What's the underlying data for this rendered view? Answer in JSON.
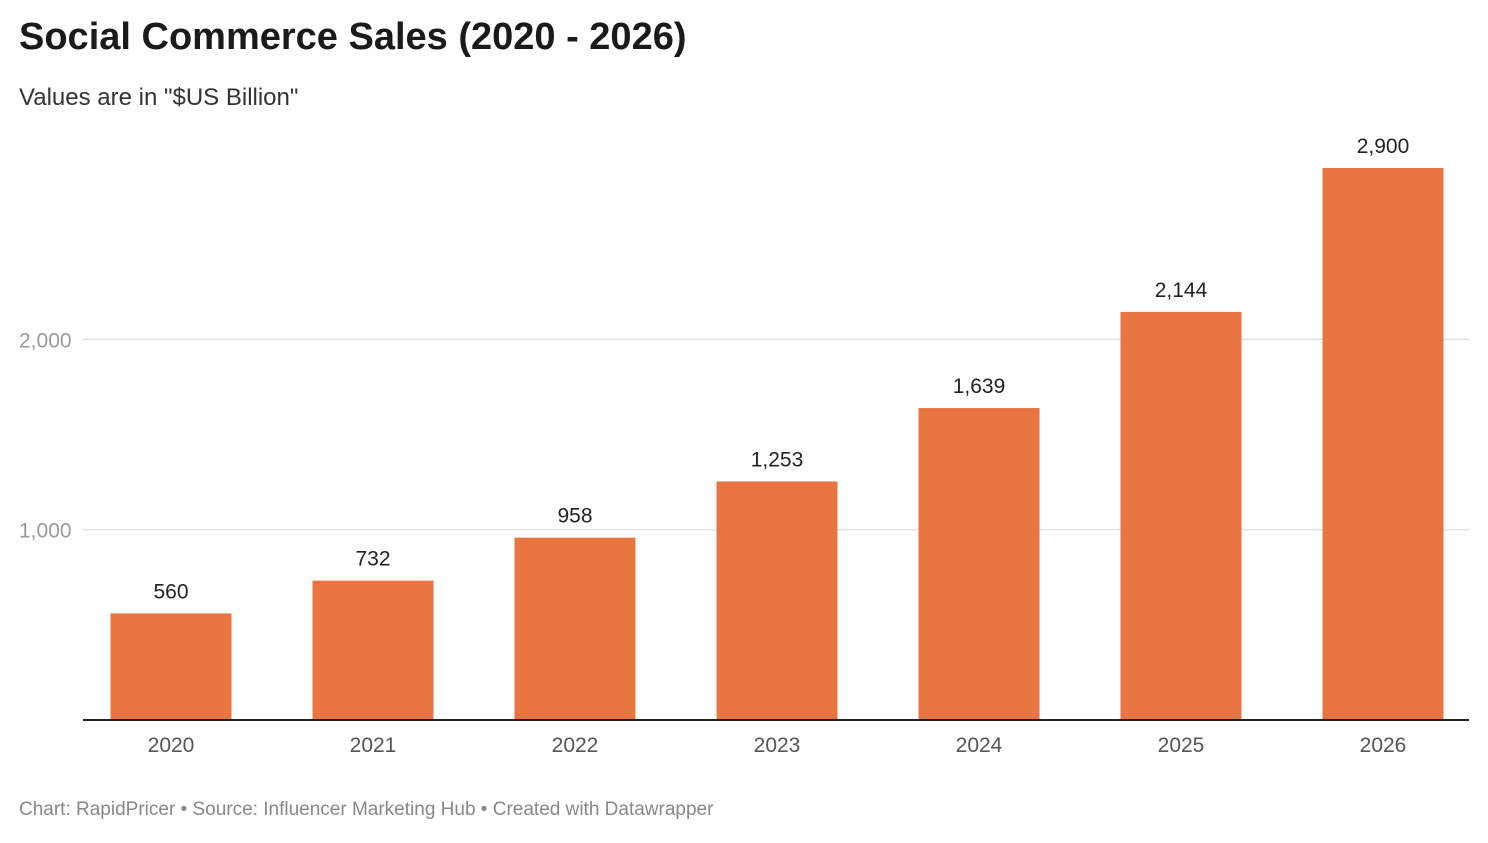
{
  "title": "Social Commerce Sales (2020 - 2026)",
  "subtitle": "Values are in \"$US Billion\"",
  "footer": "Chart: RapidPricer • Source: Influencer Marketing Hub • Created with Datawrapper",
  "colors": {
    "bar": "#e87540",
    "grid": "#e3e3e3",
    "baseline": "#222222"
  },
  "chart_data": {
    "type": "bar",
    "categories": [
      "2020",
      "2021",
      "2022",
      "2023",
      "2024",
      "2025",
      "2026"
    ],
    "values": [
      560,
      732,
      958,
      1253,
      1639,
      2144,
      2900
    ],
    "value_labels": [
      "560",
      "732",
      "958",
      "1,253",
      "1,639",
      "2,144",
      "2,900"
    ],
    "yticks": [
      1000,
      2000
    ],
    "ytick_labels": [
      "1,000",
      "2,000"
    ],
    "ylim": [
      0,
      2900
    ],
    "grid": true,
    "legend": "none"
  }
}
